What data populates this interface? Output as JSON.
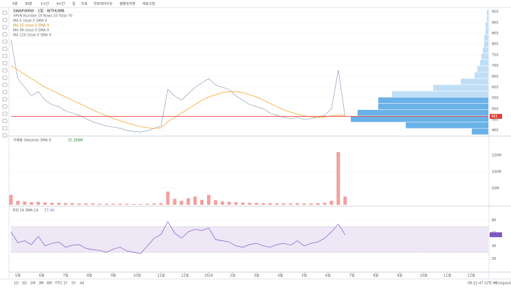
{
  "toolbar": {
    "items": [
      "5분",
      "30분",
      "1시간",
      "4시간",
      "일",
      "지표",
      "차트레이아웃",
      "템플릿저장",
      "새로고침"
    ]
  },
  "chart_data": [
    {
      "type": "line",
      "title": "SWAP/KRW · 1일 · BITHUMB",
      "legend_lines": [
        "VPVR Number Of Rows 20 Total 70",
        "MA 5 close 0 SMA 9",
        "MA 25 close 0 SMA 9",
        "MA 99 close 0 SMA 9",
        "MA 120 close 0 SMA 9"
      ],
      "series": [
        {
          "name": "SWAP/KRW",
          "color": "#7b8fb0",
          "values": [
            820,
            640,
            600,
            560,
            580,
            540,
            520,
            510,
            490,
            480,
            470,
            455,
            440,
            430,
            420,
            415,
            410,
            400,
            395,
            392,
            398,
            410,
            420,
            590,
            560,
            540,
            570,
            600,
            620,
            640,
            610,
            600,
            590,
            560,
            540,
            520,
            510,
            500,
            480,
            470,
            460,
            455,
            460,
            450,
            455,
            460,
            470,
            500,
            680,
            465
          ]
        },
        {
          "name": "MA 25",
          "color": "#f5a623",
          "values": [
            700,
            680,
            660,
            640,
            620,
            600,
            585,
            570,
            555,
            540,
            525,
            510,
            495,
            480,
            468,
            456,
            445,
            435,
            425,
            418,
            412,
            410,
            412,
            440,
            460,
            480,
            500,
            520,
            540,
            555,
            565,
            575,
            580,
            580,
            575,
            565,
            555,
            540,
            525,
            510,
            495,
            485,
            475,
            468,
            463,
            460,
            462,
            468,
            470,
            470
          ]
        }
      ],
      "xlim": [
        0,
        70
      ],
      "ylim": [
        380,
        960
      ],
      "yticks": [
        400,
        450,
        500,
        550,
        600,
        650,
        700,
        750,
        800,
        850,
        900,
        950
      ],
      "xticks": [
        {
          "value": 1,
          "label": "5월"
        },
        {
          "value": 4.5,
          "label": "6월"
        },
        {
          "value": 8,
          "label": "7월"
        },
        {
          "value": 11.5,
          "label": "8월"
        },
        {
          "value": 15,
          "label": "9월"
        },
        {
          "value": 18.5,
          "label": "10월"
        },
        {
          "value": 22,
          "label": "11월"
        },
        {
          "value": 25.5,
          "label": "12월"
        },
        {
          "value": 29,
          "label": "2024"
        },
        {
          "value": 32.5,
          "label": "2월"
        },
        {
          "value": 36,
          "label": "3월"
        },
        {
          "value": 39.5,
          "label": "4월"
        },
        {
          "value": 43,
          "label": "5월"
        },
        {
          "value": 46.5,
          "label": "6월"
        },
        {
          "value": 50,
          "label": "7월"
        },
        {
          "value": 53.5,
          "label": "8월"
        },
        {
          "value": 57,
          "label": "9월"
        },
        {
          "value": 60.5,
          "label": "10월"
        },
        {
          "value": 64,
          "label": "11월"
        },
        {
          "value": 67.5,
          "label": "12월"
        }
      ],
      "volume_profile": {
        "bins": [
          380,
          409,
          438,
          467,
          496,
          525,
          554,
          583,
          612,
          641,
          670,
          699,
          728,
          757,
          786,
          815,
          844,
          873,
          902,
          931,
          960
        ],
        "values": [
          12,
          60,
          100,
          95,
          80,
          80,
          70,
          40,
          20,
          10,
          8,
          6,
          5,
          4,
          3,
          3,
          2,
          2,
          1,
          1
        ],
        "xlim": [
          0,
          100
        ],
        "color": "#5aa9e6",
        "light_color": "#b9dcf5"
      },
      "price_line_color": "#e53935"
    },
    {
      "type": "bar",
      "title": "거래량 (Volume) SMA 9",
      "last_label": "25.369M",
      "color": "#f0a0a0",
      "values": [
        30,
        12,
        10,
        8,
        9,
        7,
        6,
        6,
        5,
        5,
        4,
        4,
        4,
        3,
        3,
        3,
        3,
        3,
        2,
        2,
        3,
        4,
        5,
        40,
        18,
        12,
        20,
        25,
        15,
        30,
        14,
        10,
        9,
        8,
        7,
        6,
        6,
        5,
        5,
        4,
        4,
        4,
        5,
        4,
        4,
        5,
        6,
        12,
        160,
        25
      ],
      "ylim": [
        0,
        200
      ],
      "yticks": [
        {
          "value": 50,
          "label": "50M"
        },
        {
          "value": 100,
          "label": "100M"
        },
        {
          "value": 150,
          "label": "150M"
        }
      ]
    },
    {
      "type": "line",
      "title": "RSI 14 SMA 14",
      "last_label": "57.40",
      "color": "#7e57c2",
      "values": [
        62,
        45,
        48,
        42,
        55,
        40,
        44,
        46,
        38,
        41,
        42,
        36,
        34,
        33,
        30,
        35,
        38,
        32,
        30,
        28,
        40,
        52,
        58,
        78,
        60,
        52,
        62,
        66,
        64,
        68,
        50,
        48,
        46,
        40,
        38,
        42,
        44,
        40,
        38,
        42,
        44,
        41,
        48,
        40,
        44,
        46,
        52,
        62,
        74,
        57.4
      ],
      "ylim": [
        0,
        100
      ],
      "yticks": [
        20,
        40,
        60,
        80
      ],
      "bands": [
        30,
        70
      ]
    }
  ],
  "bottom_bar": {
    "ranges": [
      "1D",
      "5D",
      "1M",
      "3M",
      "6M",
      "YTD",
      "1Y",
      "5Y",
      "All"
    ],
    "clock": "09:21:47 (UTC+9)",
    "options": [
      "%",
      "log",
      "auto"
    ]
  }
}
